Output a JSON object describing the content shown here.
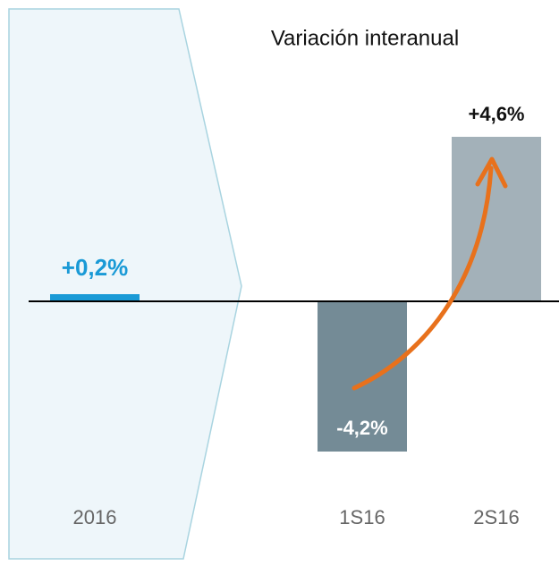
{
  "chart_data": {
    "type": "bar",
    "title": "Variación interanual",
    "categories": [
      "2016",
      "1S16",
      "2S16"
    ],
    "values": [
      0.2,
      -4.2,
      4.6
    ],
    "value_labels": [
      "+0,2%",
      "-4,2%",
      "+4,6%"
    ],
    "colors": [
      "#1a9ad6",
      "#748b96",
      "#a3b1b9"
    ],
    "ylim": [
      -5,
      5
    ]
  }
}
